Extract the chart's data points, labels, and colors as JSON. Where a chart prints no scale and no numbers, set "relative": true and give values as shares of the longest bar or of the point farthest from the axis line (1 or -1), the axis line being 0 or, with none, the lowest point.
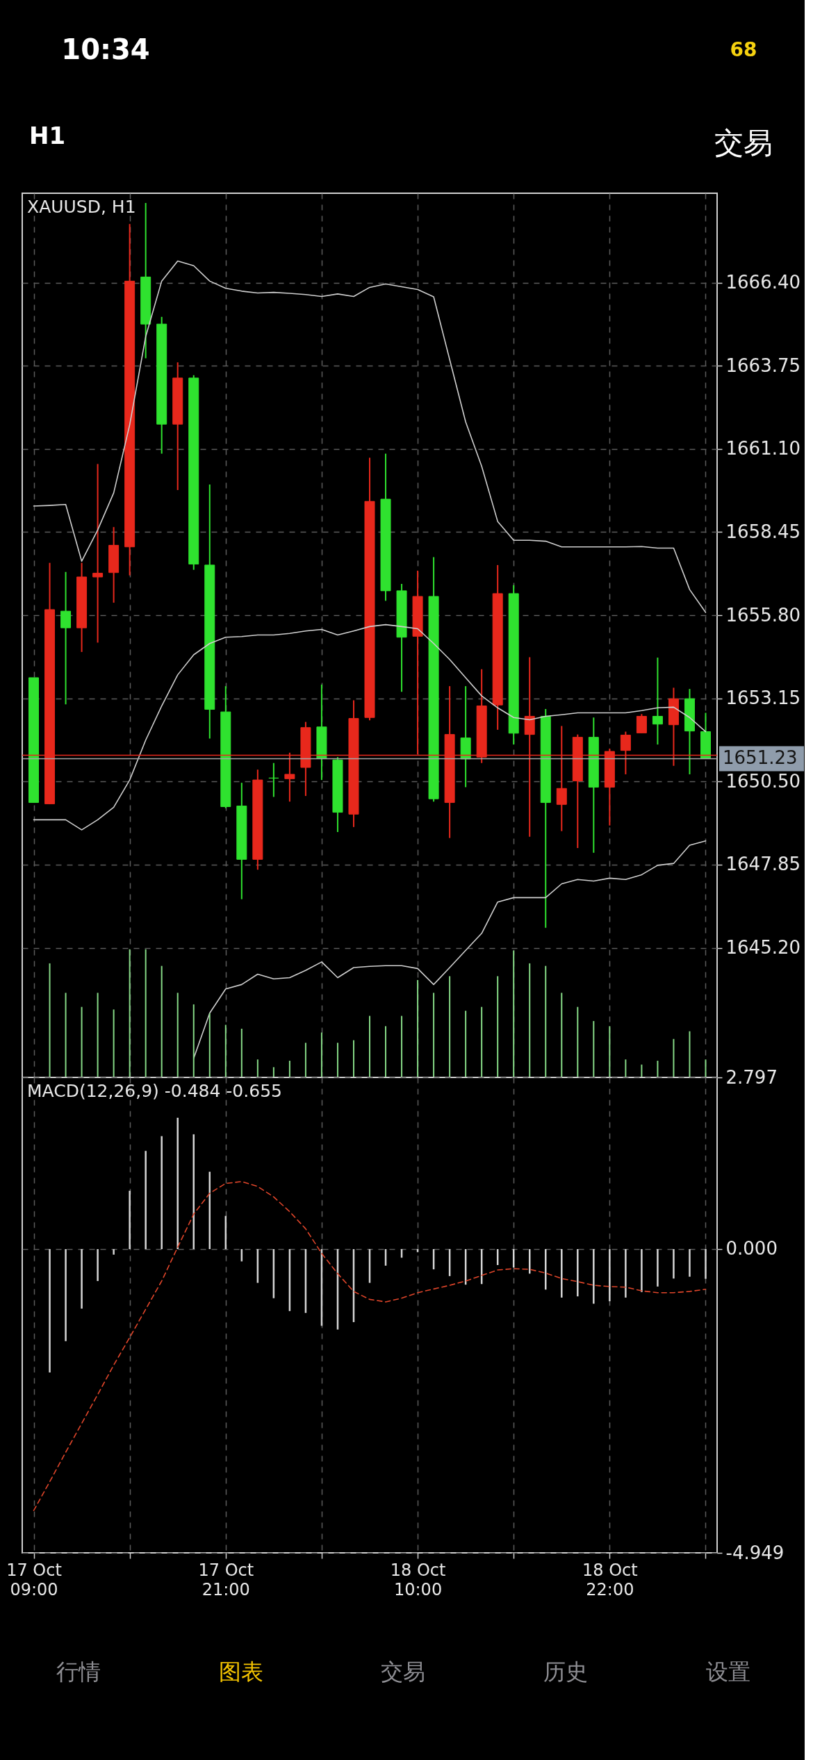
{
  "chart_data": [
    {
      "type": "other",
      "annotations": [
        "10:34",
        "68",
        "H1",
        "交易"
      ],
      "colors": [
        "#ffffff",
        "#f5d10f",
        "#ffffff",
        "#ffffff"
      ]
    },
    {
      "type": "candlestick",
      "title": "XAUUSD, H1",
      "categories": [
        null,
        null,
        null,
        null,
        null,
        null,
        null,
        null,
        null,
        null,
        null,
        null,
        null,
        null,
        null,
        null,
        null,
        null,
        null,
        null,
        null,
        null,
        null,
        null,
        null,
        null,
        null,
        null,
        null,
        null,
        null,
        null,
        null,
        null,
        null,
        null,
        null,
        null,
        null,
        null,
        null,
        null,
        null
      ],
      "ohlc": [
        [
          1653.81,
          1653.81,
          1649.83,
          1649.83
        ],
        [
          1649.79,
          1657.47,
          1649.79,
          1655.98
        ],
        [
          1655.93,
          1657.18,
          1652.96,
          1655.4
        ],
        [
          1655.4,
          1657.47,
          1654.63,
          1657.02
        ],
        [
          1657.02,
          1660.62,
          1654.93,
          1657.14
        ],
        [
          1657.16,
          1658.61,
          1656.2,
          1658.03
        ],
        [
          1657.98,
          1668.27,
          1657.07,
          1666.45
        ],
        [
          1666.58,
          1668.94,
          1663.99,
          1665.08
        ],
        [
          1665.08,
          1665.31,
          1660.95,
          1661.89
        ],
        [
          1661.89,
          1663.86,
          1659.79,
          1663.36
        ],
        [
          1663.36,
          1663.45,
          1657.25,
          1657.43
        ],
        [
          1657.4,
          1659.97,
          1651.87,
          1652.8
        ],
        [
          1652.72,
          1653.54,
          1649.65,
          1649.7
        ],
        [
          1649.72,
          1650.46,
          1646.75,
          1648.02
        ],
        [
          1648.02,
          1650.88,
          1647.69,
          1650.55
        ],
        [
          1650.61,
          1651.09,
          1650.01,
          1650.61
        ],
        [
          1650.59,
          1651.42,
          1649.86,
          1650.73
        ],
        [
          1650.95,
          1652.4,
          1650.04,
          1652.22
        ],
        [
          1652.24,
          1653.59,
          1650.55,
          1651.24
        ],
        [
          1651.19,
          1651.28,
          1648.89,
          1649.52
        ],
        [
          1649.46,
          1653.09,
          1649.05,
          1652.51
        ],
        [
          1652.54,
          1660.82,
          1652.45,
          1659.43
        ],
        [
          1659.5,
          1660.95,
          1656.26,
          1656.58
        ],
        [
          1656.58,
          1656.8,
          1653.36,
          1655.1
        ],
        [
          1655.13,
          1657.22,
          1651.37,
          1656.4
        ],
        [
          1656.4,
          1657.65,
          1649.86,
          1649.95
        ],
        [
          1649.83,
          1653.54,
          1648.7,
          1652.0
        ],
        [
          1651.89,
          1653.54,
          1650.32,
          1651.22
        ],
        [
          1651.28,
          1654.08,
          1651.09,
          1652.91
        ],
        [
          1652.94,
          1657.4,
          1652.15,
          1656.49
        ],
        [
          1656.49,
          1656.76,
          1651.68,
          1652.04
        ],
        [
          1652.0,
          1654.46,
          1648.74,
          1652.58
        ],
        [
          1652.58,
          1652.81,
          1645.84,
          1649.83
        ],
        [
          1649.77,
          1652.27,
          1648.92,
          1650.28
        ],
        [
          1650.52,
          1652.0,
          1648.38,
          1651.91
        ],
        [
          1651.91,
          1652.54,
          1648.23,
          1650.32
        ],
        [
          1650.32,
          1651.55,
          1649.1,
          1651.46
        ],
        [
          1651.49,
          1652.09,
          1650.73,
          1651.98
        ],
        [
          1652.05,
          1652.65,
          1652.05,
          1652.58
        ],
        [
          1652.58,
          1654.45,
          1651.68,
          1652.33
        ],
        [
          1652.31,
          1653.49,
          1651.0,
          1653.14
        ],
        [
          1653.14,
          1653.45,
          1650.73,
          1652.11
        ],
        [
          1652.09,
          1652.69,
          1651.22,
          1651.23
        ]
      ],
      "colors": [
        "#2fe22f",
        "#e8281c",
        "#2fe22f",
        "#e8281c",
        "#e8281c",
        "#e8281c",
        "#e8281c",
        "#2fe22f",
        "#2fe22f",
        "#e8281c",
        "#2fe22f",
        "#2fe22f",
        "#2fe22f",
        "#2fe22f",
        "#e8281c",
        "#2fe22f",
        "#e8281c",
        "#e8281c",
        "#2fe22f",
        "#2fe22f",
        "#e8281c",
        "#e8281c",
        "#2fe22f",
        "#2fe22f",
        "#e8281c",
        "#2fe22f",
        "#e8281c",
        "#2fe22f",
        "#e8281c",
        "#e8281c",
        "#2fe22f",
        "#e8281c",
        "#2fe22f",
        "#e8281c",
        "#e8281c",
        "#2fe22f",
        "#e8281c",
        "#e8281c",
        "#e8281c",
        "#2fe22f",
        "#e8281c",
        "#2fe22f",
        "#2fe22f"
      ],
      "series": [
        {
          "type": "line",
          "color": "#cfcfcf",
          "values": [
            1659.28,
            1659.3,
            1659.33,
            1657.52,
            1658.52,
            1659.7,
            1661.87,
            1664.68,
            1666.45,
            1667.09,
            1666.94,
            1666.45,
            1666.22,
            1666.13,
            1666.07,
            1666.09,
            1666.06,
            1666.02,
            1665.96,
            1666.04,
            1665.96,
            1666.25,
            1666.36,
            1666.27,
            1666.18,
            1665.95,
            1663.95,
            1661.96,
            1660.55,
            1658.79,
            1658.19,
            1658.19,
            1658.16,
            1657.98,
            1657.98,
            1657.98,
            1657.98,
            1657.98,
            1657.99,
            1657.94,
            1657.94,
            1656.62,
            1655.89
          ]
        },
        {
          "type": "line",
          "color": "#cfcfcf",
          "values": [
            1649.28,
            1649.28,
            1649.28,
            1648.96,
            1649.28,
            1649.68,
            1650.55,
            1651.82,
            1652.91,
            1653.9,
            1654.54,
            1654.9,
            1655.1,
            1655.12,
            1655.17,
            1655.17,
            1655.22,
            1655.3,
            1655.35,
            1655.17,
            1655.3,
            1655.44,
            1655.5,
            1655.44,
            1655.37,
            1654.9,
            1654.39,
            1653.81,
            1653.23,
            1652.85,
            1652.54,
            1652.47,
            1652.58,
            1652.63,
            1652.69,
            1652.69,
            1652.69,
            1652.69,
            1652.76,
            1652.85,
            1652.87,
            1652.54,
            1652.09
          ]
        },
        {
          "type": "line",
          "color": "#cfcfcf",
          "values": [
            null,
            null,
            null,
            null,
            null,
            null,
            null,
            null,
            null,
            null,
            1641.68,
            1643.12,
            1643.89,
            1644.03,
            1644.36,
            1644.21,
            1644.25,
            1644.48,
            1644.75,
            1644.25,
            1644.57,
            1644.61,
            1644.63,
            1644.63,
            1644.54,
            1644.03,
            1644.57,
            1645.12,
            1645.66,
            1646.66,
            1646.8,
            1646.8,
            1646.8,
            1647.24,
            1647.38,
            1647.33,
            1647.42,
            1647.38,
            1647.53,
            1647.83,
            1647.89,
            1648.47,
            1648.61
          ]
        }
      ],
      "ylim": [
        1641.07,
        1669.25
      ],
      "yticks": [
        {
          "value": 1666.4,
          "label": "1666.40"
        },
        1663.75,
        {
          "value": 1661.1,
          "label": "1661.10"
        },
        1658.45,
        {
          "value": 1655.8,
          "label": "1655.80"
        },
        1653.15,
        {
          "value": 1650.5,
          "label": "1650.50"
        },
        1647.85,
        {
          "value": 1645.2,
          "label": "1645.20"
        }
      ],
      "ref_lines": [
        {
          "axis": "y",
          "value": 1651.23,
          "label": "1651.23",
          "color": "#a8a8a8"
        },
        {
          "axis": "y",
          "value": 1651.34,
          "color": "#e8281c"
        }
      ],
      "grid": true,
      "tick_labels": "y"
    },
    {
      "type": "bar",
      "relative": true,
      "color": "#86d986",
      "categories": [
        null,
        null,
        null,
        null,
        null,
        null,
        null,
        null,
        null,
        null,
        null,
        null,
        null,
        null,
        null,
        null,
        null,
        null,
        null,
        null,
        null,
        null,
        null,
        null,
        null,
        null,
        null,
        null,
        null,
        null,
        null,
        null,
        null,
        null,
        null,
        null,
        null,
        null,
        null,
        null,
        null,
        null,
        null
      ],
      "values": [
        null,
        0.89,
        0.66,
        0.55,
        0.66,
        0.53,
        1,
        1,
        0.87,
        0.66,
        0.57,
        0.5,
        0.41,
        0.38,
        0.14,
        0.08,
        0.13,
        0.27,
        0.35,
        0.27,
        0.29,
        0.48,
        0.4,
        0.48,
        0.76,
        0.66,
        0.79,
        0.52,
        0.55,
        0.79,
        0.99,
        0.89,
        0.87,
        0.66,
        0.55,
        0.44,
        0.4,
        0.14,
        0.1,
        0.13,
        0.3,
        0.36,
        0.14
      ],
      "tick_labels": false
    },
    {
      "type": "bar",
      "title": "MACD(12,26,9) -0.484 -0.655",
      "categories": [
        "17 Oct 09:00",
        null,
        null,
        null,
        null,
        null,
        null,
        null,
        null,
        null,
        null,
        null,
        "17 Oct 21:00",
        null,
        null,
        null,
        null,
        null,
        null,
        null,
        null,
        null,
        null,
        null,
        "18 Oct 10:00",
        null,
        null,
        null,
        null,
        null,
        null,
        null,
        null,
        null,
        null,
        null,
        "18 Oct 22:00",
        null,
        null,
        null,
        null,
        null,
        null
      ],
      "series": [
        {
          "type": "bar",
          "color": "#d6d6d6",
          "values": [
            null,
            -2.01,
            -1.5,
            -0.97,
            -0.52,
            -0.09,
            0.95,
            1.6,
            1.84,
            2.14,
            1.87,
            1.26,
            0.54,
            -0.2,
            -0.55,
            -0.8,
            -1.01,
            -1.04,
            -1.25,
            -1.31,
            -1.19,
            -0.55,
            -0.27,
            -0.14,
            -0.05,
            -0.33,
            -0.44,
            -0.58,
            -0.57,
            -0.26,
            -0.3,
            -0.4,
            -0.66,
            -0.79,
            -0.77,
            -0.89,
            -0.85,
            -0.79,
            -0.7,
            -0.61,
            -0.48,
            -0.45,
            -0.484
          ]
        },
        {
          "type": "line",
          "color": "#e0452a",
          "line_style": "dashed",
          "values": [
            -4.26,
            -3.79,
            -3.31,
            -2.84,
            -2.37,
            -1.89,
            -1.44,
            -0.98,
            -0.52,
            0.03,
            0.57,
            0.91,
            1.07,
            1.1,
            1.02,
            0.85,
            0.61,
            0.33,
            -0.07,
            -0.4,
            -0.69,
            -0.82,
            -0.86,
            -0.8,
            -0.71,
            -0.65,
            -0.59,
            -0.52,
            -0.43,
            -0.34,
            -0.32,
            -0.33,
            -0.39,
            -0.48,
            -0.53,
            -0.59,
            -0.61,
            -0.62,
            -0.68,
            -0.71,
            -0.71,
            -0.69,
            -0.655
          ]
        }
      ],
      "ylim": [
        -4.949,
        2.797
      ],
      "yticks": [
        2.797,
        {
          "value": 0,
          "label": "0.000"
        },
        -4.949
      ],
      "grid": true
    },
    {
      "type": "other",
      "annotations": [
        "行情",
        "图表",
        "交易",
        "历史",
        "设置"
      ],
      "colors": [
        "#8e8e93",
        "#f5c400",
        "#8e8e93",
        "#8e8e93",
        "#8e8e93"
      ]
    }
  ]
}
